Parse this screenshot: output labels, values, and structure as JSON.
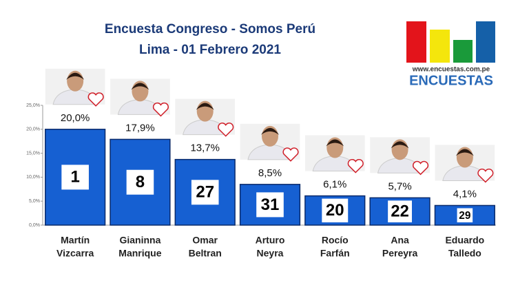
{
  "chart_data": {
    "type": "bar",
    "title": [
      "Encuesta Congreso - Somos Perú",
      "Lima - 01 Febrero 2021"
    ],
    "categories": [
      [
        "Martín",
        "Vizcarra"
      ],
      [
        "Gianinna",
        "Manrique"
      ],
      [
        "Omar",
        "Beltran"
      ],
      [
        "Arturo",
        "Neyra"
      ],
      [
        "Rocío",
        "Farfán"
      ],
      [
        "Ana",
        "Pereyra"
      ],
      [
        "Eduardo",
        "Talledo"
      ]
    ],
    "values": [
      20.0,
      17.9,
      13.7,
      8.5,
      6.1,
      5.7,
      4.1
    ],
    "value_labels": [
      "20,0%",
      "17,9%",
      "13,7%",
      "8,5%",
      "6,1%",
      "5,7%",
      "4,1%"
    ],
    "ballot_numbers": [
      1,
      8,
      27,
      31,
      20,
      22,
      29
    ],
    "color": "#1660d2",
    "ylim": [
      0,
      25
    ],
    "yticks": [
      {
        "value": 0,
        "label": "0,0%"
      },
      {
        "value": 5,
        "label": "5,0%"
      },
      {
        "value": 10,
        "label": "10,0%"
      },
      {
        "value": 15,
        "label": "15,0%"
      },
      {
        "value": 20,
        "label": "20,0%"
      },
      {
        "value": 25,
        "label": "25,0%"
      }
    ],
    "grid": false
  },
  "logo": {
    "url": "www.encuestas.com.pe",
    "name": "ENCUESTAS"
  }
}
